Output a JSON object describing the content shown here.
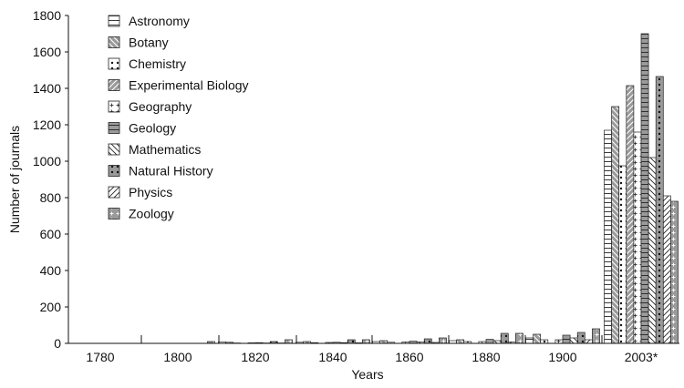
{
  "chart_data": {
    "type": "bar",
    "xlabel": "Years",
    "ylabel": "Number of journals",
    "ylim": [
      0,
      1800
    ],
    "yticks": [
      0,
      200,
      400,
      600,
      800,
      1000,
      1200,
      1400,
      1600,
      1800
    ],
    "grid": false,
    "legend_position": "top-left",
    "categories": [
      "1780",
      "1800",
      "1820",
      "1840",
      "1860",
      "1880",
      "1900",
      "2003*"
    ],
    "series": [
      {
        "name": "Astronomy",
        "pattern": "hlines",
        "values": [
          0,
          0,
          8,
          6,
          10,
          15,
          30,
          1170
        ]
      },
      {
        "name": "Botany",
        "pattern": "backdiag-gray",
        "values": [
          0,
          0,
          6,
          10,
          15,
          20,
          50,
          1300
        ]
      },
      {
        "name": "Chemistry",
        "pattern": "dots",
        "values": [
          0,
          0,
          2,
          4,
          6,
          10,
          20,
          975
        ]
      },
      {
        "name": "Experimental Biology",
        "pattern": "fwddiag-gray",
        "values": [
          0,
          0,
          0,
          0,
          0,
          0,
          0,
          1415
        ]
      },
      {
        "name": "Geography",
        "pattern": "plus",
        "values": [
          0,
          0,
          3,
          5,
          8,
          10,
          20,
          1160
        ]
      },
      {
        "name": "Geology",
        "pattern": "hlines-gray",
        "values": [
          0,
          0,
          4,
          6,
          12,
          22,
          45,
          1700
        ]
      },
      {
        "name": "Mathematics",
        "pattern": "backdiag",
        "values": [
          0,
          0,
          2,
          4,
          8,
          15,
          30,
          1020
        ]
      },
      {
        "name": "Natural History",
        "pattern": "dots-gray",
        "values": [
          0,
          0,
          10,
          20,
          25,
          55,
          60,
          1465
        ]
      },
      {
        "name": "Physics",
        "pattern": "fwddiag",
        "values": [
          0,
          0,
          2,
          3,
          5,
          8,
          20,
          810
        ]
      },
      {
        "name": "Zoology",
        "pattern": "plus-gray",
        "values": [
          0,
          10,
          20,
          20,
          30,
          55,
          80,
          780
        ]
      }
    ],
    "extra_bars": [
      {
        "series": "Geology",
        "year": "1880",
        "value": 20
      },
      {
        "series": "Natural History",
        "year": "1900",
        "value": 80
      },
      {
        "series": "Zoology",
        "year": "1900",
        "value": 110
      }
    ]
  }
}
